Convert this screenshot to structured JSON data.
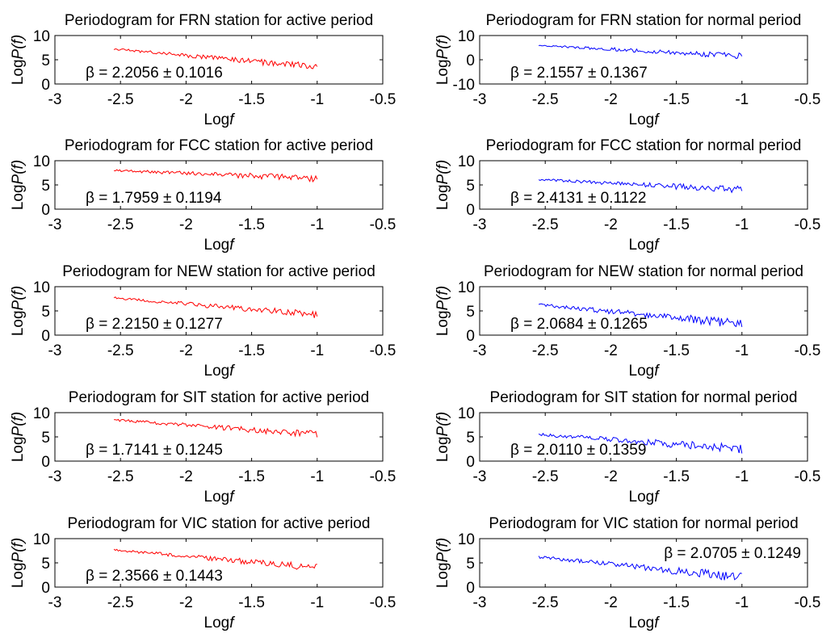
{
  "figure": {
    "colors": {
      "active": "#ff0000",
      "normal": "#0000ff",
      "axis": "#000000"
    },
    "beta_symbol": "β",
    "pm_symbol": "±"
  },
  "chart_data": [
    {
      "type": "line",
      "station": "FRN",
      "period": "active",
      "title_prefix": "Periodogram for FRN station for",
      "title_suffix": "active period",
      "xlabel_prefix": "Log",
      "xlabel_italic": "f",
      "ylabel_prefix": "Log",
      "ylabel_italic": "P(f)",
      "xlim": [
        -3,
        -0.5
      ],
      "ylim": [
        0,
        10
      ],
      "xticks": [
        -3,
        -2.5,
        -2,
        -1.5,
        -1,
        -0.5
      ],
      "xtick_labels": [
        "-3",
        "-2.5",
        "-2",
        "-1.5",
        "-1",
        "-0.5"
      ],
      "yticks": [
        0,
        5,
        10
      ],
      "ytick_labels": [
        "0",
        "5",
        "10"
      ],
      "beta_label": "= 2.2056",
      "beta_error": "0.1016",
      "beta_location": "lower-left",
      "color_key": "active",
      "x_range": [
        -2.55,
        -1.0
      ],
      "y_start": 7.2,
      "y_end": 3.5,
      "noise_amp": 0.6,
      "seed": 1
    },
    {
      "type": "line",
      "station": "FRN",
      "period": "normal",
      "title_prefix": "Periodogram for FRN station for",
      "title_suffix": "normal period",
      "xlabel_prefix": "Log",
      "xlabel_italic": "f",
      "ylabel_prefix": "Log",
      "ylabel_italic": "P(f)",
      "xlim": [
        -3,
        -0.5
      ],
      "ylim": [
        -10,
        10
      ],
      "xticks": [
        -3,
        -2.5,
        -2,
        -1.5,
        -1,
        -0.5
      ],
      "xtick_labels": [
        "-3",
        "-2.5",
        "-2",
        "-1.5",
        "-1",
        "-0.5"
      ],
      "yticks": [
        -10,
        0,
        10
      ],
      "ytick_labels": [
        "-10",
        "0",
        "10"
      ],
      "beta_label": "= 2.1557",
      "beta_error": "0.1367",
      "beta_location": "lower-left",
      "color_key": "normal",
      "x_range": [
        -2.55,
        -1.0
      ],
      "y_start": 6.0,
      "y_end": 1.5,
      "noise_amp": 1.0,
      "seed": 2
    },
    {
      "type": "line",
      "station": "FCC",
      "period": "active",
      "title_prefix": "Periodogram for FCC station for",
      "title_suffix": "active period",
      "xlabel_prefix": "Log",
      "xlabel_italic": "f",
      "ylabel_prefix": "Log",
      "ylabel_italic": "P(f)",
      "xlim": [
        -3,
        -0.5
      ],
      "ylim": [
        0,
        10
      ],
      "xticks": [
        -3,
        -2.5,
        -2,
        -1.5,
        -1,
        -0.5
      ],
      "xtick_labels": [
        "-3",
        "-2.5",
        "-2",
        "-1.5",
        "-1",
        "-0.5"
      ],
      "yticks": [
        0,
        5,
        10
      ],
      "ytick_labels": [
        "0",
        "5",
        "10"
      ],
      "beta_label": "= 1.7959",
      "beta_error": "0.1194",
      "beta_location": "lower-left",
      "color_key": "active",
      "x_range": [
        -2.55,
        -1.0
      ],
      "y_start": 8.0,
      "y_end": 6.3,
      "noise_amp": 0.6,
      "seed": 3
    },
    {
      "type": "line",
      "station": "FCC",
      "period": "normal",
      "title_prefix": "Periodogram for FCC station for",
      "title_suffix": "normal period",
      "xlabel_prefix": "Log",
      "xlabel_italic": "f",
      "ylabel_prefix": "Log",
      "ylabel_italic": "P(f)",
      "xlim": [
        -3,
        -0.5
      ],
      "ylim": [
        0,
        10
      ],
      "xticks": [
        -3,
        -2.5,
        -2,
        -1.5,
        -1,
        -0.5
      ],
      "xtick_labels": [
        "-3",
        "-2.5",
        "-2",
        "-1.5",
        "-1",
        "-0.5"
      ],
      "yticks": [
        0,
        5,
        10
      ],
      "ytick_labels": [
        "0",
        "5",
        "10"
      ],
      "beta_label": "= 2.4131",
      "beta_error": "0.1122",
      "beta_location": "lower-left",
      "color_key": "normal",
      "x_range": [
        -2.55,
        -1.0
      ],
      "y_start": 6.1,
      "y_end": 4.0,
      "noise_amp": 0.6,
      "seed": 4
    },
    {
      "type": "line",
      "station": "NEW",
      "period": "active",
      "title_prefix": "Periodogram for NEW station for",
      "title_suffix": "active period",
      "xlabel_prefix": "Log",
      "xlabel_italic": "f",
      "ylabel_prefix": "Log",
      "ylabel_italic": "P(f)",
      "xlim": [
        -3,
        -0.5
      ],
      "ylim": [
        0,
        10
      ],
      "xticks": [
        -3,
        -2.5,
        -2,
        -1.5,
        -1,
        -0.5
      ],
      "xtick_labels": [
        "-3",
        "-2.5",
        "-2",
        "-1.5",
        "-1",
        "-0.5"
      ],
      "yticks": [
        0,
        5,
        10
      ],
      "ytick_labels": [
        "0",
        "5",
        "10"
      ],
      "beta_label": "= 2.2150",
      "beta_error": "0.1277",
      "beta_location": "lower-left",
      "color_key": "active",
      "x_range": [
        -2.55,
        -1.0
      ],
      "y_start": 7.7,
      "y_end": 4.2,
      "noise_amp": 0.6,
      "seed": 5
    },
    {
      "type": "line",
      "station": "NEW",
      "period": "normal",
      "title_prefix": "Periodogram for NEW station for",
      "title_suffix": "normal period",
      "xlabel_prefix": "Log",
      "xlabel_italic": "f",
      "ylabel_prefix": "Log",
      "ylabel_italic": "P(f)",
      "xlim": [
        -3,
        -0.5
      ],
      "ylim": [
        0,
        10
      ],
      "xticks": [
        -3,
        -2.5,
        -2,
        -1.5,
        -1,
        -0.5
      ],
      "xtick_labels": [
        "-3",
        "-2.5",
        "-2",
        "-1.5",
        "-1",
        "-0.5"
      ],
      "yticks": [
        0,
        5,
        10
      ],
      "ytick_labels": [
        "0",
        "5",
        "10"
      ],
      "beta_label": "= 2.0684",
      "beta_error": "0.1265",
      "beta_location": "lower-left",
      "color_key": "normal",
      "x_range": [
        -2.55,
        -1.0
      ],
      "y_start": 6.3,
      "y_end": 2.3,
      "noise_amp": 0.8,
      "seed": 6
    },
    {
      "type": "line",
      "station": "SIT",
      "period": "active",
      "title_prefix": "Periodogram for SIT station for",
      "title_suffix": "active period",
      "xlabel_prefix": "Log",
      "xlabel_italic": "f",
      "ylabel_prefix": "Log",
      "ylabel_italic": "P(f)",
      "xlim": [
        -3,
        -0.5
      ],
      "ylim": [
        0,
        10
      ],
      "xticks": [
        -3,
        -2.5,
        -2,
        -1.5,
        -1,
        -0.5
      ],
      "xtick_labels": [
        "-3",
        "-2.5",
        "-2",
        "-1.5",
        "-1",
        "-0.5"
      ],
      "yticks": [
        0,
        5,
        10
      ],
      "ytick_labels": [
        "0",
        "5",
        "10"
      ],
      "beta_label": "= 1.7141",
      "beta_error": "0.1245",
      "beta_location": "lower-left",
      "color_key": "active",
      "x_range": [
        -2.55,
        -1.0
      ],
      "y_start": 8.5,
      "y_end": 5.5,
      "noise_amp": 0.6,
      "seed": 7
    },
    {
      "type": "line",
      "station": "SIT",
      "period": "normal",
      "title_prefix": "Periodogram for SIT station for",
      "title_suffix": "normal period",
      "xlabel_prefix": "Log",
      "xlabel_italic": "f",
      "ylabel_prefix": "Log",
      "ylabel_italic": "P(f)",
      "xlim": [
        -3,
        -0.5
      ],
      "ylim": [
        0,
        10
      ],
      "xticks": [
        -3,
        -2.5,
        -2,
        -1.5,
        -1,
        -0.5
      ],
      "xtick_labels": [
        "-3",
        "-2.5",
        "-2",
        "-1.5",
        "-1",
        "-0.5"
      ],
      "yticks": [
        0,
        5,
        10
      ],
      "ytick_labels": [
        "0",
        "5",
        "10"
      ],
      "beta_label": "= 2.0110",
      "beta_error": "0.1359",
      "beta_location": "lower-left",
      "color_key": "normal",
      "x_range": [
        -2.55,
        -1.0
      ],
      "y_start": 5.5,
      "y_end": 2.5,
      "noise_amp": 0.8,
      "seed": 8
    },
    {
      "type": "line",
      "station": "VIC",
      "period": "active",
      "title_prefix": "Periodogram for VIC station for",
      "title_suffix": "active period",
      "xlabel_prefix": "Log",
      "xlabel_italic": "f",
      "ylabel_prefix": "Log",
      "ylabel_italic": "P(f)",
      "xlim": [
        -3,
        -0.5
      ],
      "ylim": [
        0,
        10
      ],
      "xticks": [
        -3,
        -2.5,
        -2,
        -1.5,
        -1,
        -0.5
      ],
      "xtick_labels": [
        "-3",
        "-2.5",
        "-2",
        "-1.5",
        "-1",
        "-0.5"
      ],
      "yticks": [
        0,
        5,
        10
      ],
      "ytick_labels": [
        "0",
        "5",
        "10"
      ],
      "beta_label": "= 2.3566",
      "beta_error": "0.1443",
      "beta_location": "lower-left",
      "color_key": "active",
      "x_range": [
        -2.55,
        -1.0
      ],
      "y_start": 7.7,
      "y_end": 4.0,
      "noise_amp": 0.6,
      "seed": 9
    },
    {
      "type": "line",
      "station": "VIC",
      "period": "normal",
      "title_prefix": "Periodogram for VIC station for",
      "title_suffix": "normal period",
      "xlabel_prefix": "Log",
      "xlabel_italic": "f",
      "ylabel_prefix": "Log",
      "ylabel_italic": "P(f)",
      "xlim": [
        -3,
        -0.5
      ],
      "ylim": [
        0,
        10
      ],
      "xticks": [
        -3,
        -2.5,
        -2,
        -1.5,
        -1,
        -0.5
      ],
      "xtick_labels": [
        "-3",
        "-2.5",
        "-2",
        "-1.5",
        "-1",
        "-0.5"
      ],
      "yticks": [
        0,
        5,
        10
      ],
      "ytick_labels": [
        "0",
        "5",
        "10"
      ],
      "beta_label": "= 2.0705",
      "beta_error": "0.1249",
      "beta_location": "upper-right",
      "color_key": "normal",
      "x_range": [
        -2.55,
        -1.0
      ],
      "y_start": 6.2,
      "y_end": 2.0,
      "noise_amp": 0.8,
      "seed": 10
    }
  ]
}
